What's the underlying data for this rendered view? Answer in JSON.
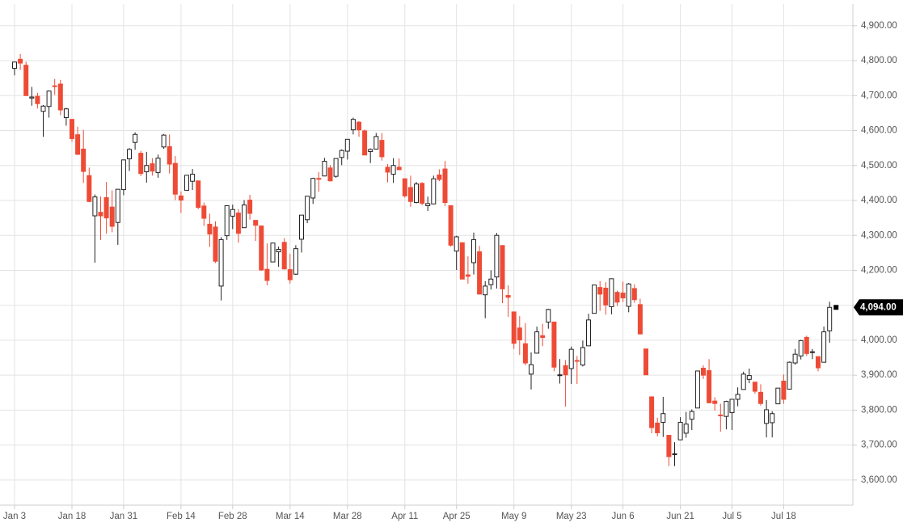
{
  "chart_data": {
    "type": "candlestick",
    "categories": [
      "Jan 3",
      null,
      null,
      null,
      null,
      null,
      null,
      null,
      null,
      null,
      "Jan 18",
      null,
      null,
      null,
      null,
      null,
      null,
      null,
      null,
      "Jan 31",
      null,
      null,
      null,
      null,
      null,
      null,
      null,
      null,
      null,
      "Feb 14",
      null,
      null,
      null,
      null,
      null,
      null,
      null,
      null,
      "Feb 28",
      null,
      null,
      null,
      null,
      null,
      null,
      null,
      null,
      null,
      "Mar 14",
      null,
      null,
      null,
      null,
      null,
      null,
      null,
      null,
      null,
      "Mar 28",
      null,
      null,
      null,
      null,
      null,
      null,
      null,
      null,
      null,
      "Apr 11",
      null,
      null,
      null,
      null,
      null,
      null,
      null,
      null,
      "Apr 25",
      null,
      null,
      null,
      null,
      null,
      null,
      null,
      null,
      null,
      "May 9",
      null,
      null,
      null,
      null,
      null,
      null,
      null,
      null,
      null,
      "May 23",
      null,
      null,
      null,
      null,
      null,
      null,
      null,
      null,
      "Jun 6",
      null,
      null,
      null,
      null,
      null,
      null,
      null,
      null,
      null,
      "Jun 21",
      null,
      null,
      null,
      null,
      null,
      null,
      null,
      null,
      "Jul 5",
      null,
      null,
      null,
      null,
      null,
      null,
      null,
      null,
      "Jul 18",
      null,
      null,
      null,
      null,
      null,
      null,
      null,
      null
    ],
    "open": [
      4778,
      4804,
      4787,
      4693,
      4698,
      4655,
      4669,
      4728,
      4733,
      4637,
      4632,
      4588,
      4547,
      4471,
      4356,
      4366,
      4408,
      4381,
      4337,
      4431,
      4519,
      4566,
      4535,
      4482,
      4505,
      4480,
      4553,
      4554,
      4506,
      4413,
      4429,
      4455,
      4456,
      4384,
      4332,
      4324,
      4155,
      4299,
      4355,
      4364,
      4322,
      4401,
      4343,
      4327,
      4203,
      4224,
      4253,
      4280,
      4202,
      4189,
      4289,
      4345,
      4407,
      4463,
      4470,
      4493,
      4469,
      4523,
      4541,
      4602,
      4624,
      4599,
      4540,
      4547,
      4572,
      4495,
      4475,
      4495,
      4462,
      4437,
      4394,
      4449,
      4385,
      4390,
      4473,
      4490,
      4385,
      4255,
      4279,
      4187,
      4222,
      4253,
      4130,
      4159,
      4181,
      4271,
      4128,
      4081,
      4035,
      3990,
      3903,
      3963,
      4013,
      4052,
      4052,
      3900,
      3927,
      3919,
      3942,
      3929,
      3984,
      4077,
      4151,
      4149,
      4096,
      4137,
      4135,
      4097,
      4148,
      4102,
      3975,
      3838,
      3763,
      3765,
      3728,
      3674,
      3715,
      3734,
      3774,
      3806,
      3920,
      3913,
      3826,
      3786,
      3782,
      3793,
      3831,
      3859,
      3888,
      3880,
      3851,
      3762,
      3764,
      3818,
      3883,
      3860,
      3935,
      3955,
      4008,
      3965,
      3953,
      3937,
      4027
    ],
    "high": [
      4797,
      4819,
      4797,
      4725,
      4708,
      4673,
      4715,
      4748,
      4745,
      4665,
      4632,
      4611,
      4602,
      4494,
      4417,
      4411,
      4453,
      4429,
      4432,
      4516,
      4550,
      4595,
      4542,
      4539,
      4521,
      4531,
      4590,
      4589,
      4527,
      4426,
      4472,
      4490,
      4456,
      4394,
      4362,
      4340,
      4295,
      4386,
      4388,
      4375,
      4401,
      4416,
      4343,
      4327,
      4277,
      4279,
      4268,
      4292,
      4247,
      4272,
      4358,
      4412,
      4465,
      4481,
      4522,
      4501,
      4520,
      4546,
      4575,
      4637,
      4627,
      4603,
      4549,
      4593,
      4593,
      4504,
      4521,
      4520,
      4463,
      4471,
      4453,
      4452,
      4411,
      4471,
      4489,
      4513,
      4386,
      4299,
      4279,
      4240,
      4308,
      4270,
      4169,
      4200,
      4307,
      4271,
      4157,
      4081,
      4069,
      4049,
      3965,
      4039,
      4047,
      4090,
      4052,
      3946,
      3943,
      3982,
      3955,
      3999,
      4076,
      4158,
      4169,
      4166,
      4177,
      4142,
      4168,
      4164,
      4160,
      4119,
      3975,
      3838,
      3778,
      3838,
      3728,
      3708,
      3780,
      3795,
      3802,
      3913,
      3928,
      3946,
      3837,
      3818,
      3827,
      3832,
      3865,
      3910,
      3919,
      3880,
      3874,
      3829,
      3797,
      3863,
      3902,
      3939,
      3975,
      4001,
      4013,
      3975,
      3954,
      4039,
      4110
    ],
    "low": [
      4758,
      4774,
      4699,
      4671,
      4663,
      4582,
      4637,
      4702,
      4644,
      4614,
      4568,
      4530,
      4450,
      4395,
      4222,
      4287,
      4305,
      4309,
      4273,
      4415,
      4484,
      4545,
      4470,
      4451,
      4471,
      4465,
      4548,
      4477,
      4401,
      4364,
      4429,
      4430,
      4375,
      4327,
      4267,
      4221,
      4114,
      4287,
      4318,
      4279,
      4322,
      4345,
      4284,
      4199,
      4157,
      4224,
      4210,
      4202,
      4162,
      4187,
      4251,
      4335,
      4390,
      4425,
      4469,
      4455,
      4465,
      4501,
      4517,
      4589,
      4582,
      4530,
      4507,
      4546,
      4514,
      4452,
      4450,
      4487,
      4408,
      4382,
      4392,
      4386,
      4370,
      4390,
      4455,
      4384,
      4268,
      4201,
      4174,
      4162,
      4188,
      4131,
      4063,
      4145,
      4148,
      4106,
      4067,
      3975,
      3958,
      3928,
      3859,
      3963,
      3983,
      4033,
      3911,
      3876,
      3810,
      3875,
      3875,
      3925,
      3984,
      4077,
      4084,
      4073,
      4074,
      4098,
      4109,
      4080,
      4107,
      4017,
      3901,
      3734,
      3725,
      3723,
      3640,
      3640,
      3715,
      3721,
      3743,
      3806,
      3889,
      3820,
      3799,
      3738,
      3745,
      3743,
      3811,
      3859,
      3877,
      3847,
      3813,
      3722,
      3722,
      3818,
      3818,
      3860,
      3930,
      3945,
      3955,
      3946,
      3911,
      3937,
      3993
    ],
    "close": [
      4796,
      4793,
      4700,
      4696,
      4677,
      4670,
      4713,
      4726,
      4659,
      4662,
      4577,
      4532,
      4483,
      4397,
      4410,
      4356,
      4350,
      4326,
      4432,
      4516,
      4546,
      4589,
      4477,
      4500,
      4484,
      4521,
      4587,
      4504,
      4418,
      4401,
      4472,
      4475,
      4380,
      4349,
      4304,
      4226,
      4288,
      4385,
      4374,
      4306,
      4387,
      4363,
      4329,
      4201,
      4171,
      4278,
      4260,
      4204,
      4173,
      4262,
      4358,
      4412,
      4463,
      4461,
      4512,
      4456,
      4520,
      4543,
      4575,
      4632,
      4602,
      4530,
      4546,
      4583,
      4525,
      4481,
      4500,
      4488,
      4413,
      4397,
      4447,
      4392,
      4391,
      4462,
      4460,
      4394,
      4272,
      4296,
      4175,
      4183,
      4288,
      4132,
      4155,
      4175,
      4300,
      4147,
      4123,
      3991,
      4001,
      3935,
      3930,
      4024,
      4008,
      4088,
      3923,
      3901,
      3901,
      3974,
      3941,
      3979,
      4058,
      4158,
      4132,
      4101,
      4176,
      4109,
      4121,
      4161,
      4116,
      4018,
      3901,
      3750,
      3735,
      3790,
      3667,
      3675,
      3765,
      3760,
      3796,
      3912,
      3900,
      3821,
      3819,
      3785,
      3825,
      3831,
      3845,
      3903,
      3899,
      3854,
      3819,
      3801,
      3790,
      3863,
      3831,
      3937,
      3960,
      3999,
      3962,
      3967,
      3921,
      4024,
      4094
    ],
    "up_color": "#222222",
    "down_color": "#ee4b36",
    "ylim": [
      3528,
      4962
    ],
    "yticks": [
      {
        "value": 3600,
        "label": "3,600.00"
      },
      {
        "value": 3700,
        "label": "3,700.00"
      },
      {
        "value": 3800,
        "label": "3,800.00"
      },
      {
        "value": 3900,
        "label": "3,900.00"
      },
      {
        "value": 4000,
        "label": "4,000.00"
      },
      {
        "value": 4100,
        "label": "4,100.00"
      },
      {
        "value": 4200,
        "label": "4,200.00"
      },
      {
        "value": 4300,
        "label": "4,300.00"
      },
      {
        "value": 4400,
        "label": "4,400.00"
      },
      {
        "value": 4500,
        "label": "4,500.00"
      },
      {
        "value": 4600,
        "label": "4,600.00"
      },
      {
        "value": 4700,
        "label": "4,700.00"
      },
      {
        "value": 4800,
        "label": "4,800.00"
      },
      {
        "value": 4900,
        "label": "4,900.00"
      }
    ],
    "grid": true,
    "last_price": {
      "value": 4094,
      "label": "4,094.00"
    }
  }
}
